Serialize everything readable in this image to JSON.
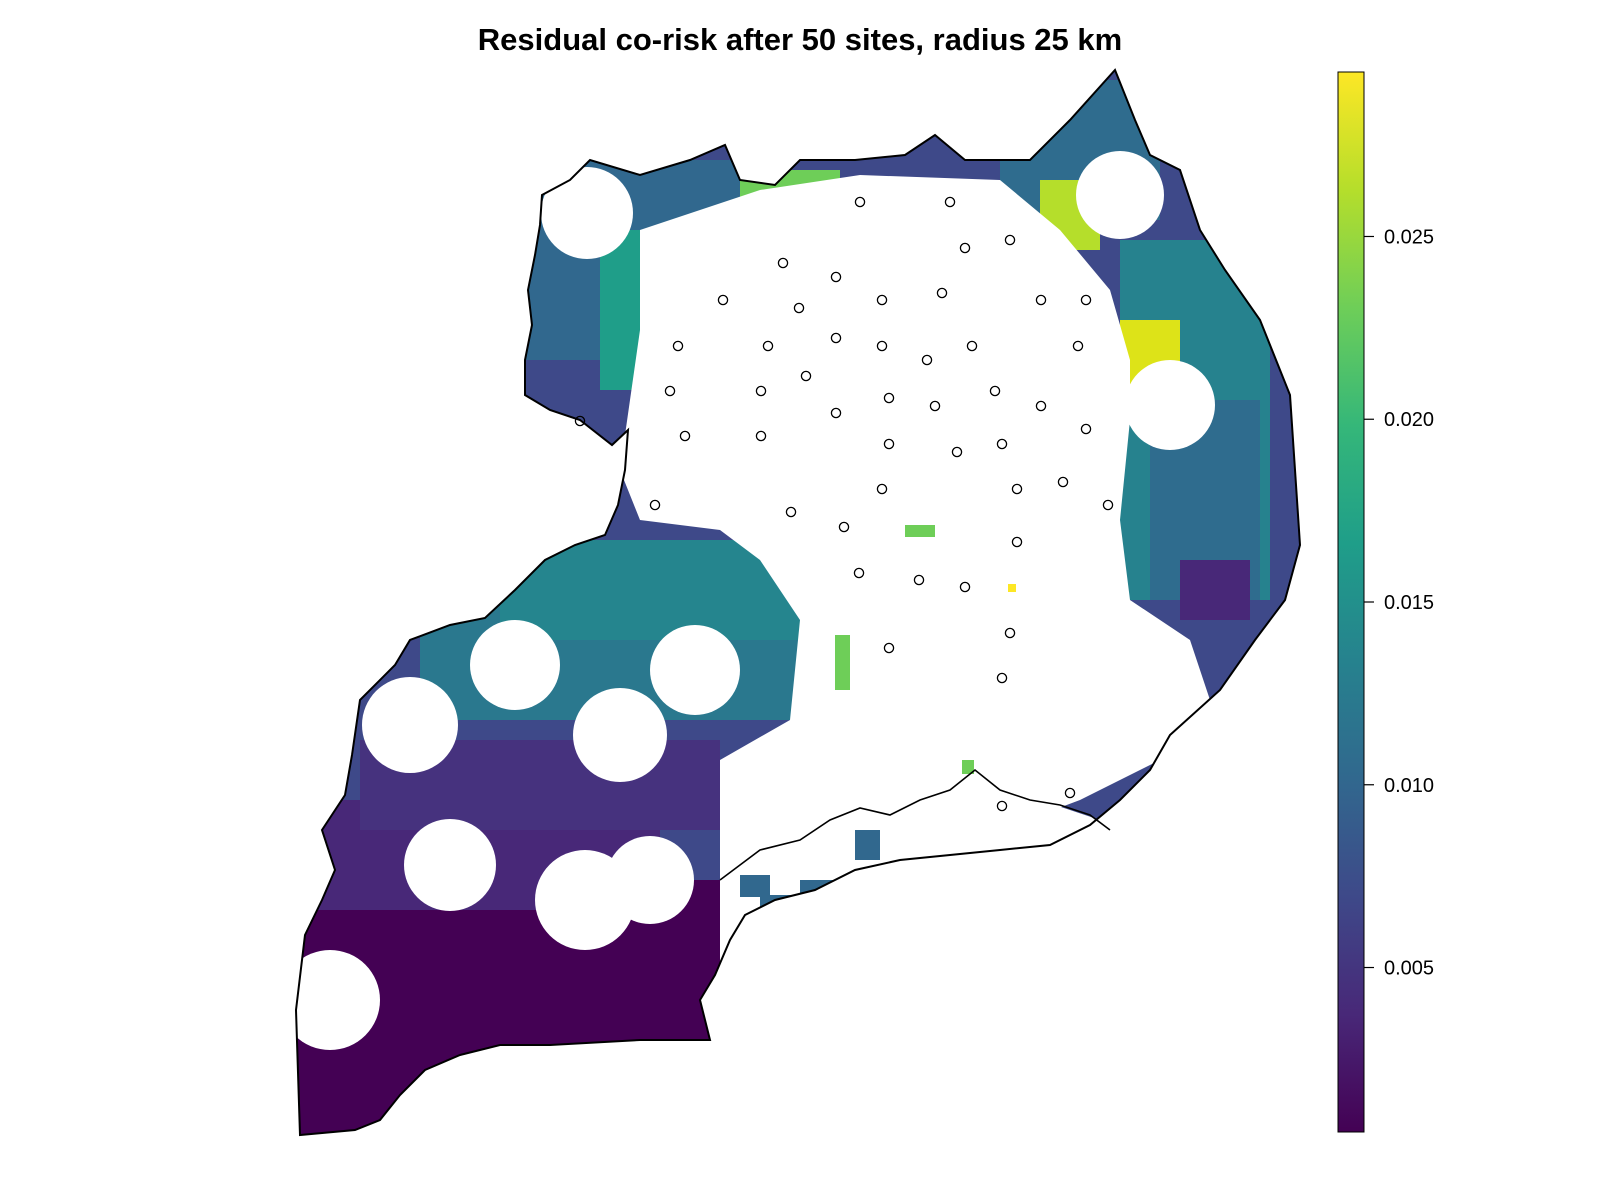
{
  "title": "Residual co-risk after 50 sites, radius 25 km",
  "legend": {
    "colors": [
      "#440154",
      "#482878",
      "#3e4989",
      "#31688e",
      "#26828e",
      "#1f9e89",
      "#35b779",
      "#6ece58",
      "#b5de2b",
      "#fde725"
    ],
    "min": 0.0005,
    "max": 0.0295,
    "ticks": [
      {
        "value": 0.005,
        "label": "0.005"
      },
      {
        "value": 0.01,
        "label": "0.010"
      },
      {
        "value": 0.015,
        "label": "0.015"
      },
      {
        "value": 0.02,
        "label": "0.020"
      },
      {
        "value": 0.025,
        "label": "0.025"
      }
    ]
  },
  "sites_count": 50,
  "radius_km": 25
}
